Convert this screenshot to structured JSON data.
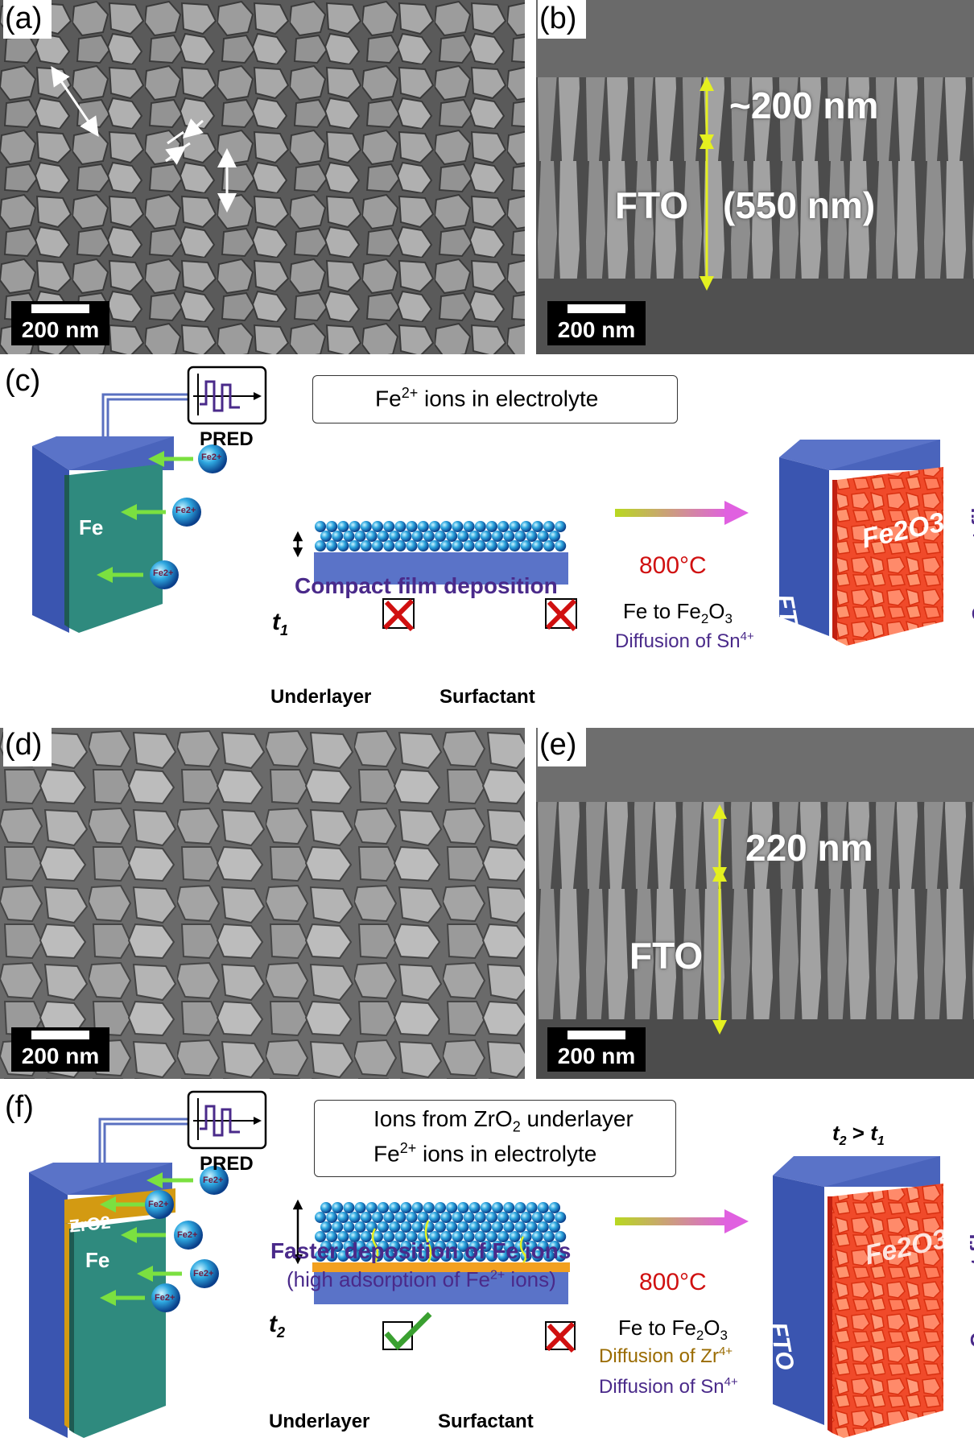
{
  "panels": {
    "a": {
      "label": "(a)",
      "scalebar": "200 nm"
    },
    "b": {
      "label": "(b)",
      "scalebar": "200 nm",
      "thickness": "~200 nm",
      "substrate": "FTO",
      "substrate_thickness": "(550 nm)"
    },
    "c": {
      "label": "(c)",
      "pred": "PRED",
      "legend_fe": "Fe",
      "legend_fe_sup": "2+",
      "legend_fe_rest": " ions in electrolyte",
      "electrode_fto": "FTO",
      "electrode_fe": "Fe",
      "ion": "Fe2+",
      "title": "Compact film deposition",
      "thickness_symbol": "t",
      "thickness_sub": "1",
      "underlayer": "Underlayer",
      "surfactant": "Surfactant",
      "temp": "800°C",
      "conv_a": "Fe to Fe",
      "conv_sub": "2",
      "conv_b": "O",
      "conv_sub2": "3",
      "diffusion_sn": "Diffusion of Sn",
      "diffusion_sn_sup": "4+",
      "result_fto": "FTO",
      "result_film": "Fe2O3",
      "result_side": "Compact film"
    },
    "d": {
      "label": "(d)",
      "scalebar": "200 nm"
    },
    "e": {
      "label": "(e)",
      "scalebar": "200 nm",
      "thickness": "220 nm",
      "substrate": "FTO"
    },
    "f": {
      "label": "(f)",
      "pred": "PRED",
      "legend_zr_a": "Ions from ZrO",
      "legend_zr_sub": "2",
      "legend_zr_b": " underlayer",
      "legend_fe": "Fe",
      "legend_fe_sup": "2+",
      "legend_fe_rest": " ions in electrolyte",
      "electrode_fto": "FTO",
      "electrode_zro2": "ZrO2",
      "electrode_fe": "Fe",
      "ion": "Fe2+",
      "title": "Faster deposition of Fe ions",
      "subtitle_a": "(high adsorption of Fe",
      "subtitle_sup": "2+",
      "subtitle_b": " ions)",
      "thickness_symbol": "t",
      "thickness_sub": "2",
      "underlayer": "Underlayer",
      "surfactant": "Surfactant",
      "temp": "800°C",
      "conv_a": "Fe to Fe",
      "conv_sub": "2",
      "conv_b": "O",
      "conv_sub2": "3",
      "diffusion_zr": "Diffusion of Zr",
      "diffusion_zr_sup": "4+",
      "diffusion_sn": "Diffusion of Sn",
      "diffusion_sn_sup": "4+",
      "compare_a": "t",
      "compare_sub_a": "2",
      "compare_op": " > ",
      "compare_b": "t",
      "compare_sub_b": "1",
      "result_fto": "FTO",
      "result_film": "Fe2O3",
      "result_side": "Compact film"
    }
  },
  "colors": {
    "fto_blue": "#3a55b0",
    "fe_teal": "#2f8a7e",
    "zro2_gold": "#d39a12",
    "fe2o3_red": "#f04020",
    "arrow_green": "#7be040",
    "arrow_yellow": "#d8e820",
    "heat_pink": "#e060e0",
    "label_purple": "#4a2a8a",
    "ion_blue": "#2aa0d8",
    "ion_orange": "#f2a020",
    "cross_red": "#d01010",
    "check_green": "#3aa030"
  }
}
